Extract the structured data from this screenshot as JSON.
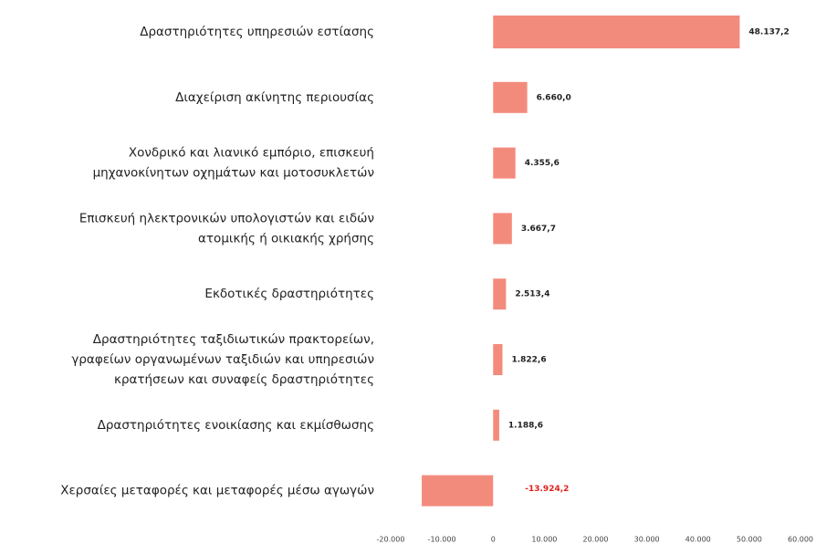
{
  "chart_data": {
    "type": "barh",
    "categories": [
      [
        "Δραστηριότητες υπηρεσιών εστίασης"
      ],
      [
        "Διαχείριση ακίνητης περιουσίας"
      ],
      [
        "Χονδρικό και λιανικό εμπόριο, επισκευή",
        "μηχανοκίνητων οχημάτων και μοτοσυκλετών"
      ],
      [
        "Επισκευή ηλεκτρονικών υπολογιστών και ειδών",
        "ατομικής ή οικιακής χρήσης"
      ],
      [
        "Εκδοτικές δραστηριότητες"
      ],
      [
        "Δραστηριότητες ταξιδιωτικών πρακτορείων,",
        "γραφείων οργανωμένων ταξιδιών και υπηρεσιών",
        "κρατήσεων και συναφείς δραστηριότητες"
      ],
      [
        "Δραστηριότητες ενοικίασης και εκμίσθωσης"
      ],
      [
        "Χερσαίες μεταφορές και μεταφορές μέσω αγωγών"
      ]
    ],
    "values": [
      48137.2,
      6660.0,
      4355.6,
      3667.7,
      2513.4,
      1822.6,
      1188.6,
      -13924.2
    ],
    "value_labels": [
      "48.137,2",
      "6.660,0",
      "4.355,6",
      "3.667,7",
      "2.513,4",
      "1.822,6",
      "1.188,6",
      "-13.924,2"
    ],
    "color": "#f38b7d",
    "negative_label_color": "#e0201b",
    "xlim": [
      -20000,
      60000
    ],
    "xticks": [
      {
        "value": -20000,
        "label": "-20.000"
      },
      {
        "value": -10000,
        "label": "-10.000"
      },
      0,
      {
        "value": 10000,
        "label": "10.000"
      },
      {
        "value": 20000,
        "label": "20.000"
      },
      {
        "value": 30000,
        "label": "30.000"
      },
      {
        "value": 40000,
        "label": "40.000"
      },
      {
        "value": 50000,
        "label": "50.000"
      },
      {
        "value": 60000,
        "label": "60.000"
      }
    ],
    "grid": false
  }
}
